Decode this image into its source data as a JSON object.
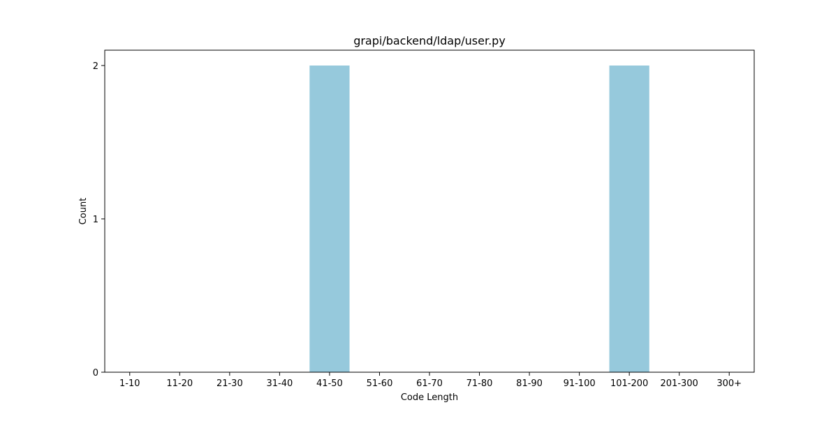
{
  "chart_data": {
    "type": "bar",
    "title": "grapi/backend/ldap/user.py",
    "xlabel": "Code Length",
    "ylabel": "Count",
    "categories": [
      "1-10",
      "11-20",
      "21-30",
      "31-40",
      "41-50",
      "51-60",
      "61-70",
      "71-80",
      "81-90",
      "91-100",
      "101-200",
      "201-300",
      "300+"
    ],
    "values": [
      0,
      0,
      0,
      0,
      2,
      0,
      0,
      0,
      0,
      0,
      2,
      0,
      0
    ],
    "ylim": [
      0,
      2.1
    ],
    "yticks": [
      0,
      1,
      2
    ],
    "bar_color": "#96c9dc",
    "grid": false,
    "legend": "none"
  }
}
